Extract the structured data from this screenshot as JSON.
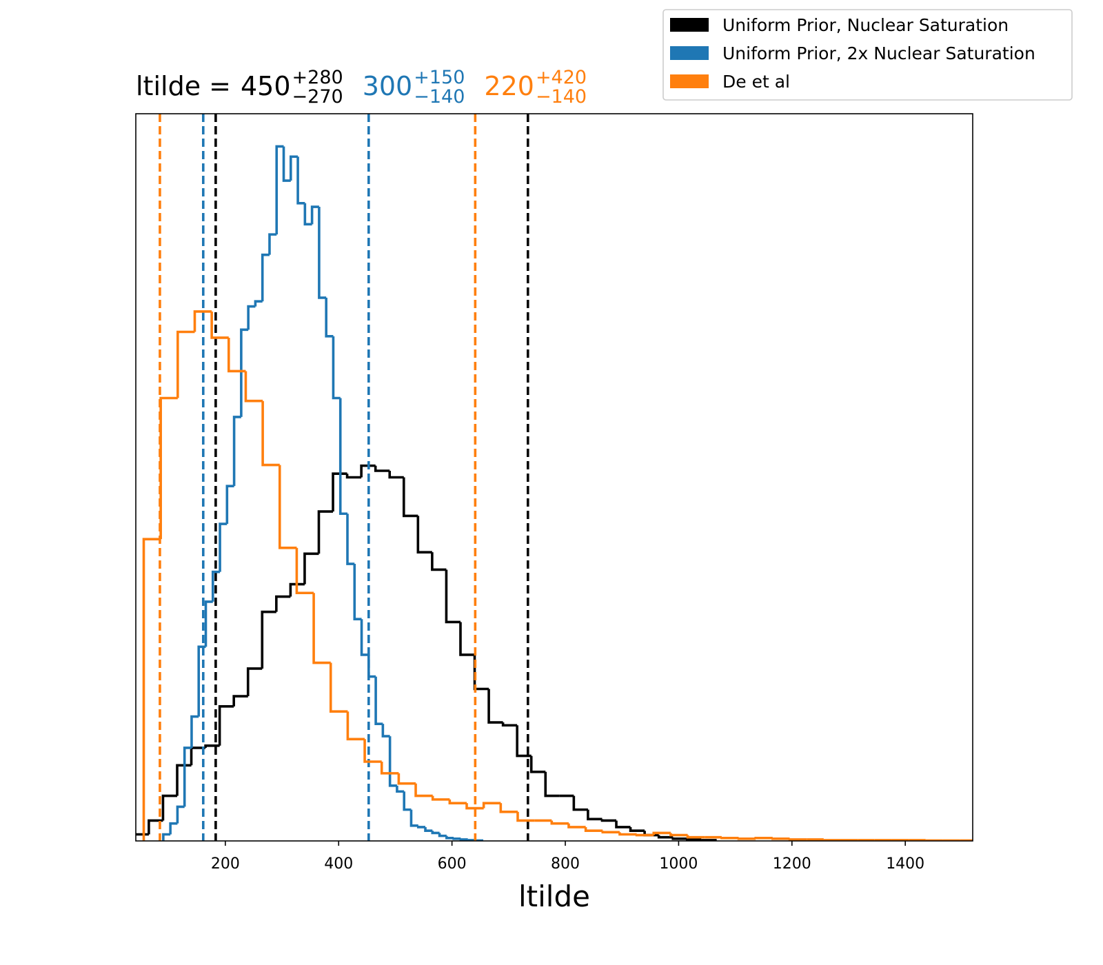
{
  "chart_data": {
    "type": "histogram",
    "title_prefix": "ltilde =",
    "xlabel": "ltilde",
    "xlim": [
      42,
      1519
    ],
    "ylim": [
      0,
      100
    ],
    "xticks": [
      200,
      400,
      600,
      800,
      1000,
      1200,
      1400
    ],
    "legend": "upper right outside",
    "series": [
      {
        "name": "Uniform Prior, Nuclear Saturation",
        "color": "#000000",
        "summary": {
          "median": "450",
          "plus": "+280",
          "minus": "−270"
        },
        "quantile_lines": [
          183,
          734
        ],
        "bins": [
          40,
          65,
          90,
          115,
          140,
          165,
          190,
          215,
          240,
          265,
          290,
          315,
          340,
          365,
          390,
          415,
          440,
          465,
          490,
          515,
          540,
          565,
          590,
          615,
          640,
          665,
          690,
          715,
          740,
          765,
          790,
          815,
          840,
          865,
          890,
          915,
          940,
          965,
          990,
          1015,
          1040,
          1065
        ],
        "values": [
          0.9,
          2.8,
          6.2,
          10.4,
          12.8,
          13.1,
          18.5,
          19.9,
          23.7,
          31.5,
          33.6,
          35.3,
          39.5,
          45.3,
          50.5,
          50.0,
          51.6,
          50.9,
          50.0,
          44.7,
          39.7,
          37.3,
          30.1,
          25.6,
          20.9,
          16.3,
          15.9,
          11.7,
          9.5,
          6.2,
          6.2,
          4.3,
          3.0,
          2.8,
          1.9,
          1.4,
          0.8,
          0.5,
          0.3,
          0.2,
          0.1
        ]
      },
      {
        "name": "Uniform Prior, 2x Nuclear Saturation",
        "color": "#1f77b4",
        "summary": {
          "median": "300",
          "plus": "+150",
          "minus": "−140"
        },
        "quantile_lines": [
          161,
          453
        ],
        "bins": [
          90.5,
          103,
          115.5,
          128,
          140.5,
          153,
          165.5,
          178,
          190.5,
          203,
          215.5,
          228,
          240.5,
          253,
          265.5,
          278,
          290.5,
          303,
          315.5,
          328,
          340.5,
          353,
          365.5,
          378,
          390.5,
          403,
          415.5,
          428,
          440.5,
          453,
          465.5,
          478,
          490.5,
          503,
          515.5,
          528,
          540.5,
          553,
          565.5,
          578,
          590.5,
          603,
          615.5,
          628,
          640.5,
          653
        ],
        "values": [
          0.9,
          2.4,
          4.7,
          12.8,
          17.1,
          26.7,
          32.9,
          37.0,
          43.6,
          48.8,
          58.3,
          70.3,
          73.5,
          74.2,
          80.6,
          83.4,
          95.5,
          90.8,
          94.1,
          87.7,
          84.8,
          87.2,
          74.7,
          69.4,
          60.9,
          45.0,
          38.1,
          30.5,
          25.6,
          22.6,
          16.1,
          14.4,
          7.6,
          6.8,
          4.3,
          2.1,
          1.9,
          1.4,
          1.1,
          0.7,
          0.4,
          0.3,
          0.2,
          0.1,
          0.05
        ]
      },
      {
        "name": "De et al",
        "color": "#ff7f0e",
        "summary": {
          "median": "220",
          "plus": "+420",
          "minus": "−140"
        },
        "quantile_lines": [
          84.5,
          641
        ],
        "bins": [
          56,
          86,
          116,
          146,
          176,
          206,
          236,
          266,
          296,
          326,
          356,
          386,
          416,
          446,
          476,
          506,
          536,
          566,
          596,
          626,
          656,
          686,
          716,
          746,
          776,
          806,
          836,
          866,
          896,
          926,
          956,
          986,
          1016,
          1046,
          1076,
          1106,
          1136,
          1166,
          1196,
          1226,
          1256,
          1286,
          1316,
          1346,
          1376,
          1406,
          1436,
          1466,
          1496,
          1526
        ],
        "values": [
          41.5,
          60.9,
          70.0,
          72.8,
          69.2,
          64.6,
          60.5,
          51.7,
          40.3,
          34.1,
          24.5,
          17.8,
          14.0,
          10.9,
          9.3,
          7.9,
          6.2,
          5.7,
          5.2,
          4.5,
          5.2,
          4.0,
          2.8,
          2.8,
          2.4,
          1.9,
          1.4,
          1.2,
          0.9,
          0.8,
          1.1,
          0.8,
          0.5,
          0.5,
          0.4,
          0.3,
          0.4,
          0.3,
          0.2,
          0.2,
          0.1,
          0.1,
          0.1,
          0.1,
          0.1,
          0.1,
          0.05,
          0.05,
          0.05
        ]
      }
    ]
  }
}
